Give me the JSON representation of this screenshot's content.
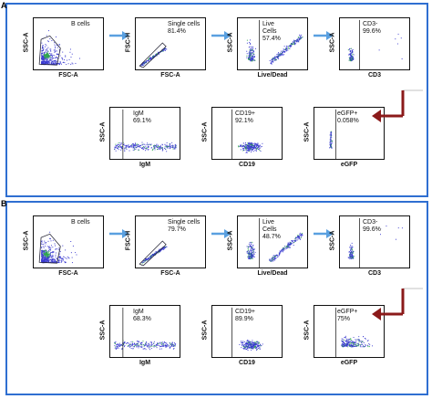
{
  "panels": [
    {
      "letter": "A",
      "top_row": [
        {
          "gate_label": "B cells",
          "gate_value": "",
          "x_label": "FSC-A",
          "y_label": "SSC-A"
        },
        {
          "gate_label": "Single cells",
          "gate_value": "81.4%",
          "x_label": "FSC-A",
          "y_label": "FSC-H"
        },
        {
          "gate_label": "Live\nCells",
          "gate_value": "57.4%",
          "x_label": "Live/Dead",
          "y_label": "SSC-A"
        },
        {
          "gate_label": "CD3-",
          "gate_value": "99.6%",
          "x_label": "CD3",
          "y_label": "SSC-A"
        }
      ],
      "bottom_row": [
        {
          "gate_label": "IgM",
          "gate_value": "69.1%",
          "x_label": "IgM",
          "y_label": "SSC-A"
        },
        {
          "gate_label": "CD19+",
          "gate_value": "92.1%",
          "x_label": "CD19",
          "y_label": "SSC-A"
        },
        {
          "gate_label": "eGFP+",
          "gate_value": "0.058%",
          "x_label": "eGFP",
          "y_label": "SSC-A"
        }
      ]
    },
    {
      "letter": "B",
      "top_row": [
        {
          "gate_label": "B cells",
          "gate_value": "",
          "x_label": "FSC-A",
          "y_label": "SSC-A"
        },
        {
          "gate_label": "Single cells",
          "gate_value": "79.7%",
          "x_label": "FSC-A",
          "y_label": "FSC-H"
        },
        {
          "gate_label": "Live\nCells",
          "gate_value": "48.7%",
          "x_label": "Live/Dead",
          "y_label": "SSC-A"
        },
        {
          "gate_label": "CD3-",
          "gate_value": "99.6%",
          "x_label": "CD3",
          "y_label": "SSC-A"
        }
      ],
      "bottom_row": [
        {
          "gate_label": "IgM",
          "gate_value": "68.3%",
          "x_label": "IgM",
          "y_label": "SSC-A"
        },
        {
          "gate_label": "CD19+",
          "gate_value": "89.9%",
          "x_label": "CD19",
          "y_label": "SSC-A"
        },
        {
          "gate_label": "eGFP+",
          "gate_value": "75%",
          "x_label": "eGFP",
          "y_label": "SSC-A"
        }
      ]
    }
  ],
  "colors": {
    "border": "#2f6fd1",
    "flow_arrow": "#5aa0e0",
    "return_arrow": "#8b1a1a",
    "dots": "#3b3bd0",
    "dense": "#2ea84a"
  }
}
